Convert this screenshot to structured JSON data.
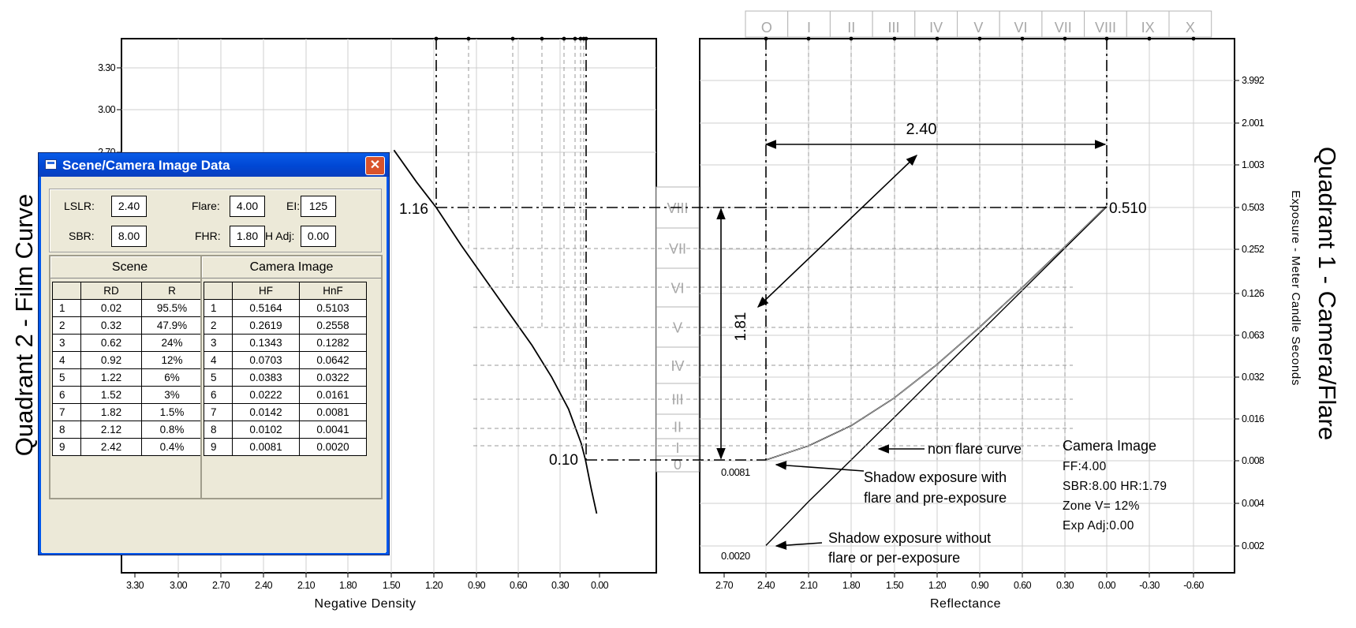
{
  "window": {
    "title": "Scene/Camera Image Data",
    "close_glyph": "✕",
    "fields": {
      "lslr": {
        "label": "LSLR:",
        "value": "2.40"
      },
      "flare": {
        "label": "Flare:",
        "value": "4.00"
      },
      "ei": {
        "label": "EI:",
        "value": "125"
      },
      "sbr": {
        "label": "SBR:",
        "value": "8.00"
      },
      "fhr": {
        "label": "FHR:",
        "value": "1.80"
      },
      "hadj": {
        "label": "H Adj:",
        "value": "0.00"
      }
    },
    "scene": {
      "title": "Scene",
      "columns": [
        "",
        "RD",
        "R"
      ],
      "rows": [
        [
          "1",
          "0.02",
          "95.5%"
        ],
        [
          "2",
          "0.32",
          "47.9%"
        ],
        [
          "3",
          "0.62",
          "24%"
        ],
        [
          "4",
          "0.92",
          "12%"
        ],
        [
          "5",
          "1.22",
          "6%"
        ],
        [
          "6",
          "1.52",
          "3%"
        ],
        [
          "7",
          "1.82",
          "1.5%"
        ],
        [
          "8",
          "2.12",
          "0.8%"
        ],
        [
          "9",
          "2.42",
          "0.4%"
        ]
      ]
    },
    "camera": {
      "title": "Camera Image",
      "columns": [
        "",
        "HF",
        "HnF"
      ],
      "rows": [
        [
          "1",
          "0.5164",
          "0.5103"
        ],
        [
          "2",
          "0.2619",
          "0.2558"
        ],
        [
          "3",
          "0.1343",
          "0.1282"
        ],
        [
          "4",
          "0.0703",
          "0.0642"
        ],
        [
          "5",
          "0.0383",
          "0.0322"
        ],
        [
          "6",
          "0.0222",
          "0.0161"
        ],
        [
          "7",
          "0.0142",
          "0.0081"
        ],
        [
          "8",
          "0.0102",
          "0.0041"
        ],
        [
          "9",
          "0.0081",
          "0.0020"
        ]
      ]
    }
  },
  "chart_data": [
    {
      "type": "line",
      "title": "Quadrant 2 - Film Curve",
      "xlabel": "Negative Density",
      "x_ticks": [
        "3.30",
        "3.00",
        "2.70",
        "2.40",
        "2.10",
        "1.80",
        "1.50",
        "1.20",
        "0.90",
        "0.60",
        "0.30",
        "0.00"
      ],
      "y_ticks": [
        "3.30",
        "3.00",
        "2.70"
      ],
      "xlim": [
        3.5,
        -0.4
      ],
      "series": [
        {
          "points": [
            [
              1.46,
              2.85
            ],
            [
              1.3,
              2.6
            ],
            [
              1.16,
              2.4
            ],
            [
              0.98,
              2.1
            ],
            [
              0.82,
              1.85
            ],
            [
              0.66,
              1.6
            ],
            [
              0.48,
              1.32
            ],
            [
              0.34,
              1.07
            ],
            [
              0.22,
              0.82
            ],
            [
              0.13,
              0.55
            ],
            [
              0.1,
              0.42
            ],
            [
              0.06,
              0.2
            ],
            [
              0.02,
              0.0
            ]
          ]
        }
      ],
      "annotations": {
        "high_density": "1.16",
        "low_density": "0.10"
      }
    },
    {
      "type": "line",
      "title": "Quadrant 1 - Camera/Flare",
      "xlabel": "Reflectance",
      "ylabel": "Exposure - Meter Candle Seconds",
      "scale": "log",
      "x_ticks": [
        "2.70",
        "2.40",
        "2.10",
        "1.80",
        "1.50",
        "1.20",
        "0.90",
        "0.60",
        "0.30",
        "0.00",
        "-0.30",
        "-0.60"
      ],
      "y_ticks": [
        "3.992",
        "2.001",
        "1.003",
        "0.503",
        "0.252",
        "0.126",
        "0.063",
        "0.032",
        "0.016",
        "0.008",
        "0.004",
        "0.002"
      ],
      "zones_top": [
        "O",
        "I",
        "II",
        "III",
        "IV",
        "V",
        "VI",
        "VII",
        "VIII",
        "IX",
        "X"
      ],
      "zones_middle": [
        "VIII",
        "VII",
        "VI",
        "V",
        "IV",
        "III",
        "II",
        "I",
        "0"
      ],
      "series": [
        {
          "name": "non flare curve",
          "points": [
            [
              2.4,
              0.002
            ],
            [
              2.1,
              0.0041
            ],
            [
              1.8,
              0.0081
            ],
            [
              1.5,
              0.0161
            ],
            [
              1.2,
              0.0322
            ],
            [
              0.9,
              0.0642
            ],
            [
              0.6,
              0.1282
            ],
            [
              0.3,
              0.2558
            ],
            [
              0.0,
              0.5103
            ]
          ]
        },
        {
          "name": "flare",
          "points": [
            [
              2.4,
              0.0081
            ],
            [
              2.1,
              0.0102
            ],
            [
              1.8,
              0.0142
            ],
            [
              1.5,
              0.0222
            ],
            [
              1.2,
              0.0383
            ],
            [
              0.9,
              0.0703
            ],
            [
              0.6,
              0.1343
            ],
            [
              0.3,
              0.2619
            ],
            [
              0.0,
              0.5164
            ]
          ]
        }
      ],
      "annotations": {
        "lslr": "2.40",
        "density_range": "1.81",
        "high_value": "0.510",
        "shadow_flare_value": "0.0081",
        "shadow_noflare_value": "0.0020",
        "non_flare_label": "non flare curve",
        "shadow_flare_label_1": "Shadow exposure with",
        "shadow_flare_label_2": "flare and pre-exposure",
        "shadow_noflare_label_1": "Shadow exposure without",
        "shadow_noflare_label_2": "flare or per-exposure"
      },
      "info_box": [
        "Camera Image",
        "FF:4.00",
        "SBR:8.00  HR:1.79",
        "Zone V= 12%",
        "Exp Adj:0.00"
      ]
    }
  ]
}
